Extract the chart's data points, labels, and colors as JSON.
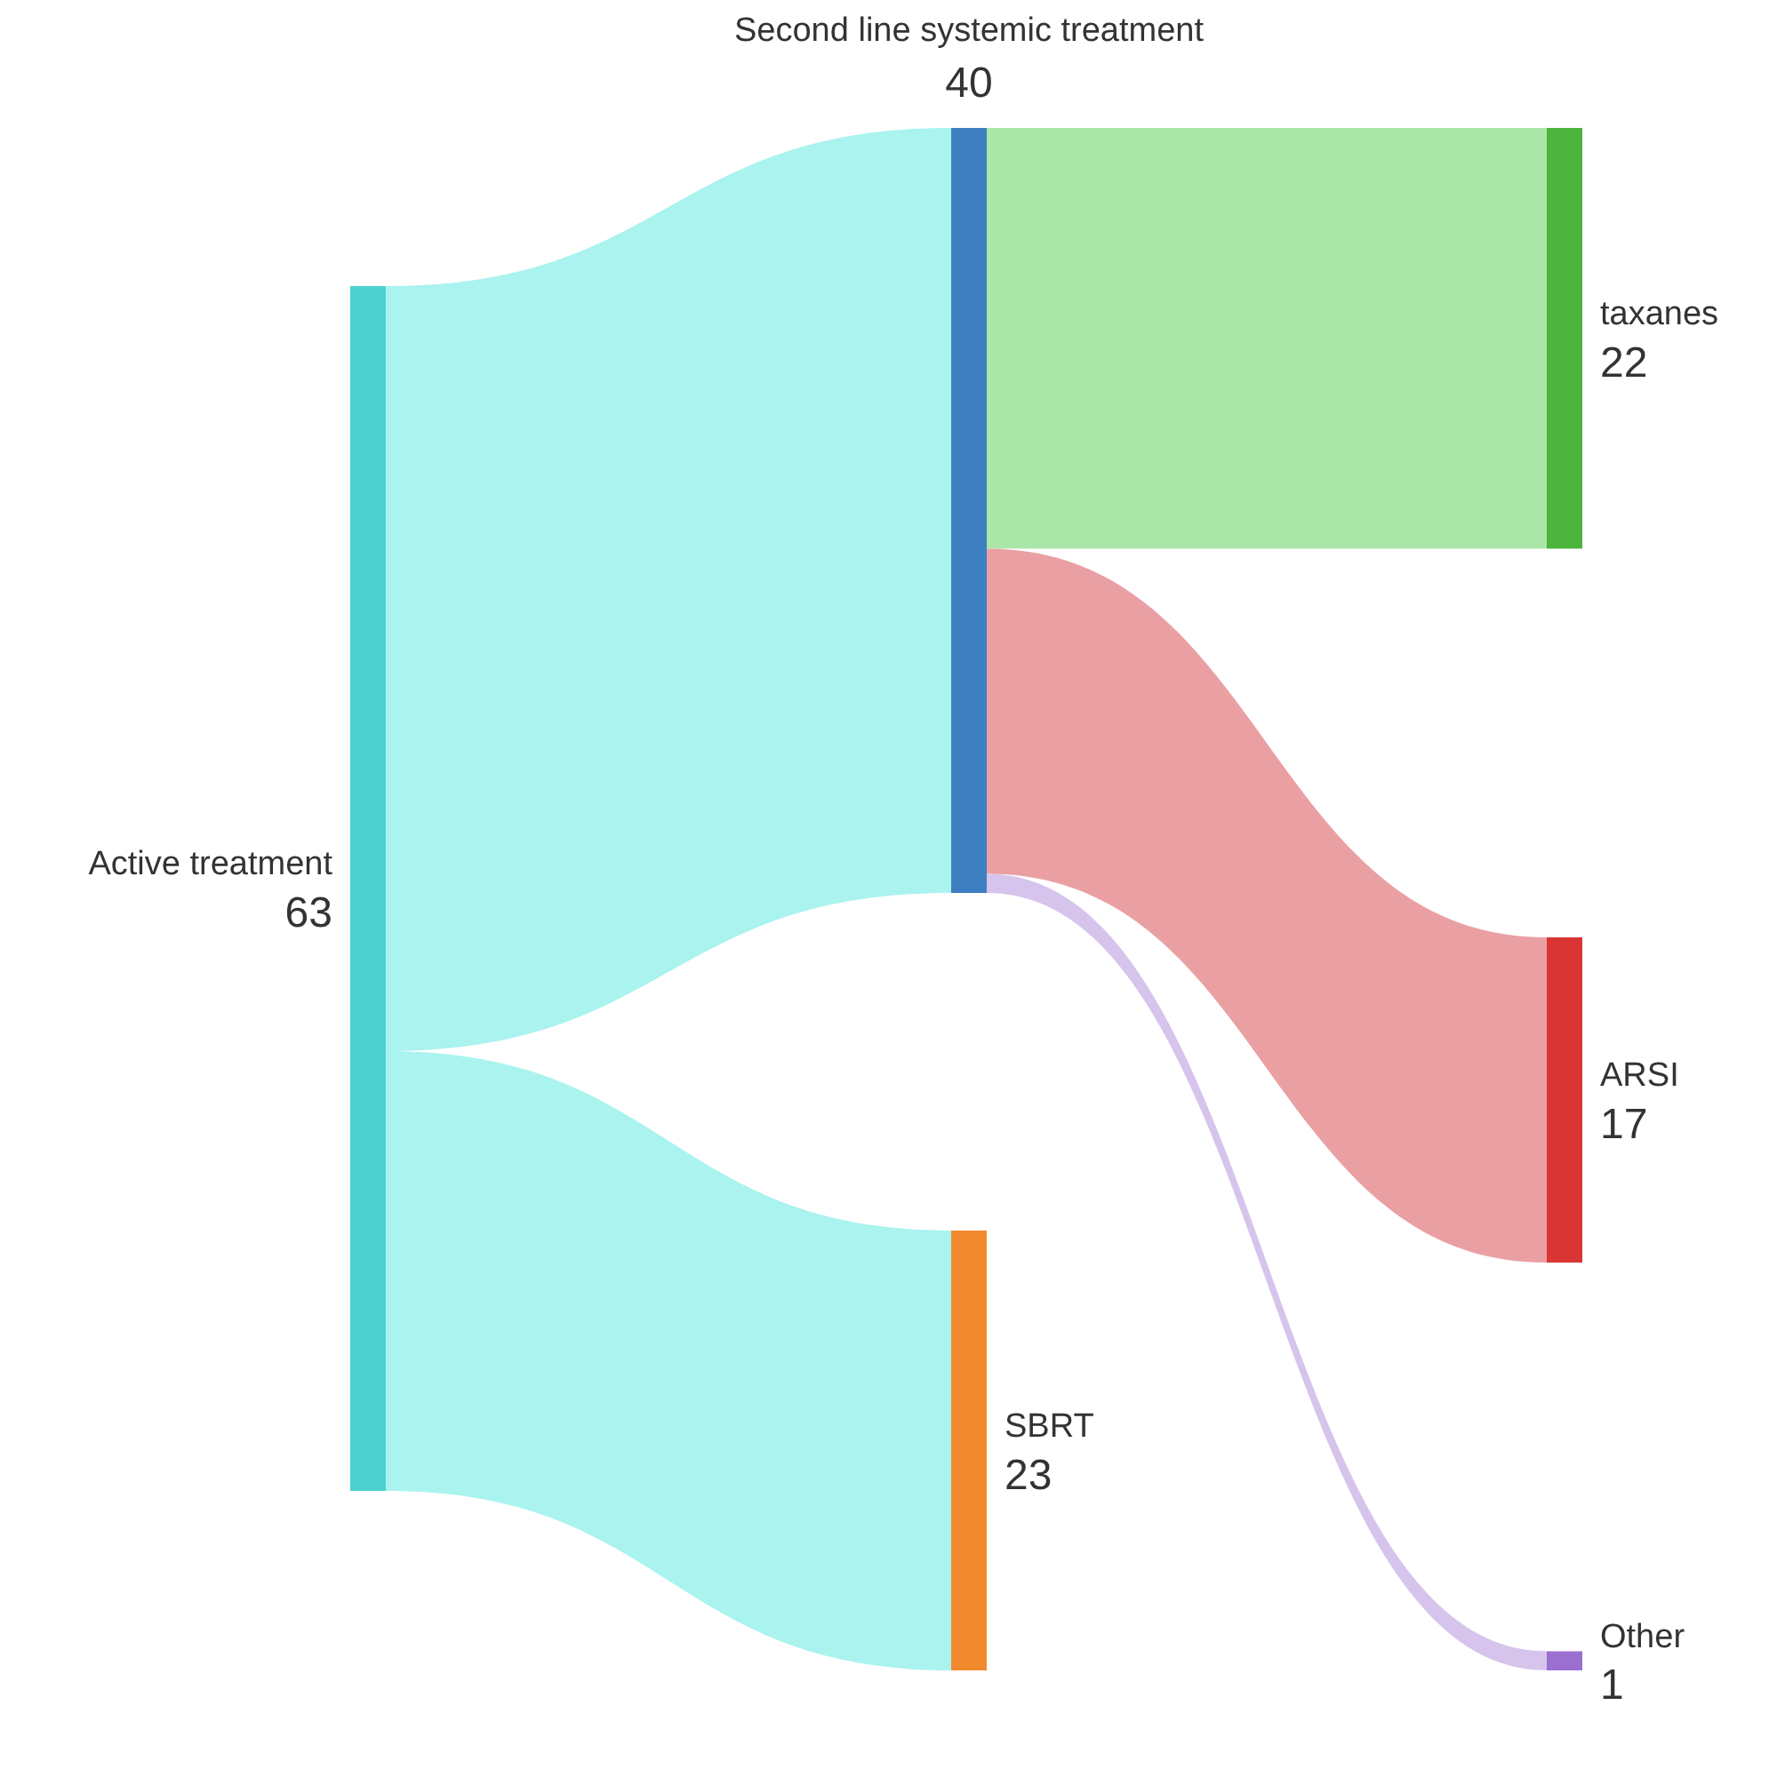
{
  "chart_data": {
    "type": "other",
    "categories": [
      "Active treatment",
      "Second line systemic treatment",
      "SBRT",
      "taxanes",
      "ARSI",
      "Other"
    ],
    "values": [
      63,
      null,
      null,
      null,
      null,
      null
    ],
    "data_labels": true,
    "colors": [
      "#4fd0d0",
      "#3d7fc0",
      "#f08a2c",
      "#4cb33c",
      "#d93535",
      "#9a6fd0"
    ],
    "series": [
      {
        "values": [
          null,
          40,
          23,
          null,
          null,
          null
        ],
        "colors": [
          null,
          "#aaf3ef",
          "#aaf3ef",
          null,
          null,
          null
        ]
      },
      {
        "values": [
          null,
          null,
          null,
          22,
          17,
          1
        ],
        "colors": [
          null,
          null,
          null,
          "#aae6a8",
          "#eaa0a3",
          "#d6c4ec"
        ]
      }
    ]
  }
}
